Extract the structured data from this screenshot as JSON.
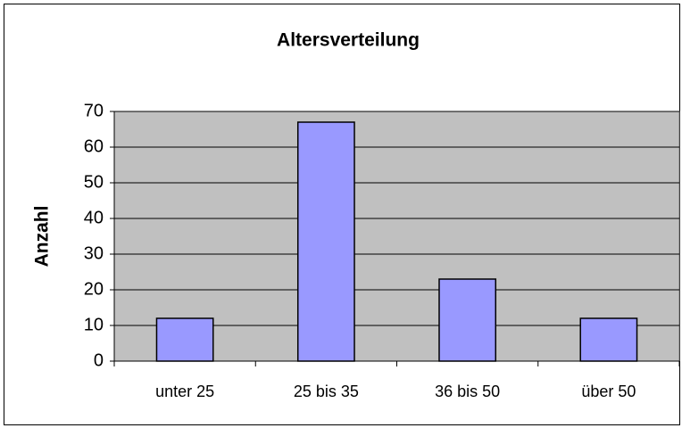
{
  "chart_data": {
    "type": "bar",
    "title": "Altersverteilung",
    "ylabel": "Anzahl",
    "categories": [
      "unter 25",
      "25 bis 35",
      "36 bis 50",
      "über 50"
    ],
    "values": [
      12,
      67,
      23,
      12
    ],
    "color": "#9999ff",
    "plot_background": "#c0c0c0",
    "ylim": [
      0,
      70
    ],
    "yticks": [
      0,
      10,
      20,
      30,
      40,
      50,
      60,
      70
    ],
    "grid": true
  }
}
